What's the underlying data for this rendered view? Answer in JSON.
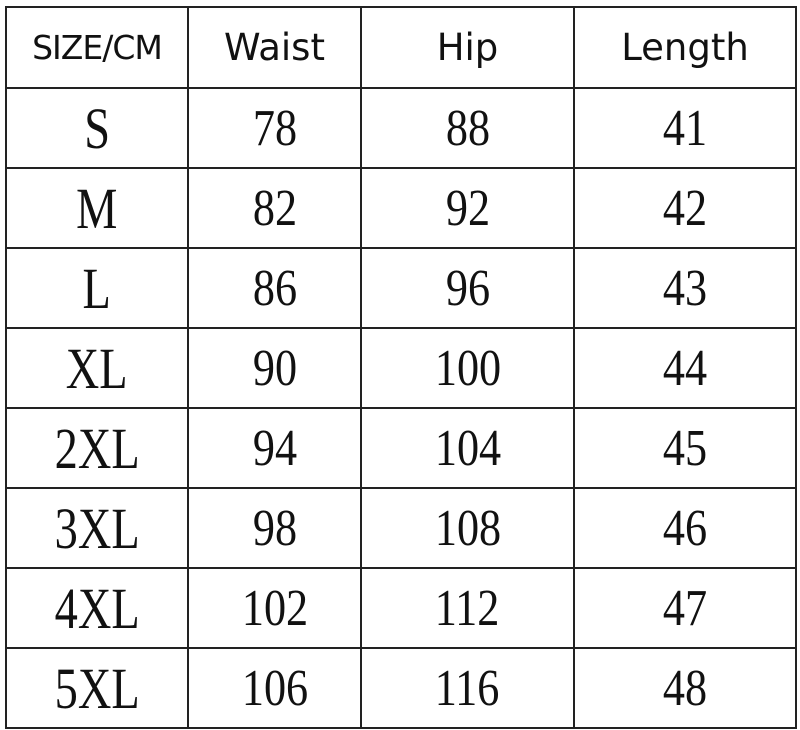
{
  "table": {
    "headers": [
      "SIZE/CM",
      "Waist",
      "Hip",
      "Length"
    ],
    "rows": [
      [
        "S",
        "78",
        "88",
        "41"
      ],
      [
        "M",
        "82",
        "92",
        "42"
      ],
      [
        "L",
        "86",
        "96",
        "43"
      ],
      [
        "XL",
        "90",
        "100",
        "44"
      ],
      [
        "2XL",
        "94",
        "104",
        "45"
      ],
      [
        "3XL",
        "98",
        "108",
        "46"
      ],
      [
        "4XL",
        "102",
        "112",
        "47"
      ],
      [
        "5XL",
        "106",
        "116",
        "48"
      ]
    ]
  }
}
